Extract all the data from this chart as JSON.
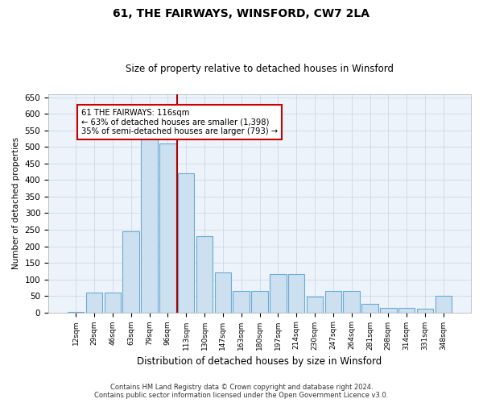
{
  "title": "61, THE FAIRWAYS, WINSFORD, CW7 2LA",
  "subtitle": "Size of property relative to detached houses in Winsford",
  "xlabel": "Distribution of detached houses by size in Winsford",
  "ylabel": "Number of detached properties",
  "categories": [
    "12sqm",
    "29sqm",
    "46sqm",
    "63sqm",
    "79sqm",
    "96sqm",
    "113sqm",
    "130sqm",
    "147sqm",
    "163sqm",
    "180sqm",
    "197sqm",
    "214sqm",
    "230sqm",
    "247sqm",
    "264sqm",
    "281sqm",
    "298sqm",
    "314sqm",
    "331sqm",
    "348sqm"
  ],
  "values": [
    2,
    60,
    60,
    245,
    525,
    510,
    420,
    230,
    120,
    65,
    65,
    115,
    115,
    48,
    65,
    65,
    25,
    13,
    13,
    10,
    50
  ],
  "bar_color": "#cce0f0",
  "bar_edge_color": "#6aaad4",
  "vline_color": "#aa0000",
  "vline_x_index": 6,
  "annotation_text_1": "61 THE FAIRWAYS: 116sqm",
  "annotation_text_2": "← 63% of detached houses are smaller (1,398)",
  "annotation_text_3": "35% of semi-detached houses are larger (793) →",
  "annotation_box_color": "#ffffff",
  "annotation_box_edge": "#cc0000",
  "grid_color": "#ccd9e8",
  "background_color": "#edf3fa",
  "footer_line1": "Contains HM Land Registry data © Crown copyright and database right 2024.",
  "footer_line2": "Contains public sector information licensed under the Open Government Licence v3.0.",
  "ylim": [
    0,
    660
  ],
  "yticks": [
    0,
    50,
    100,
    150,
    200,
    250,
    300,
    350,
    400,
    450,
    500,
    550,
    600,
    650
  ]
}
